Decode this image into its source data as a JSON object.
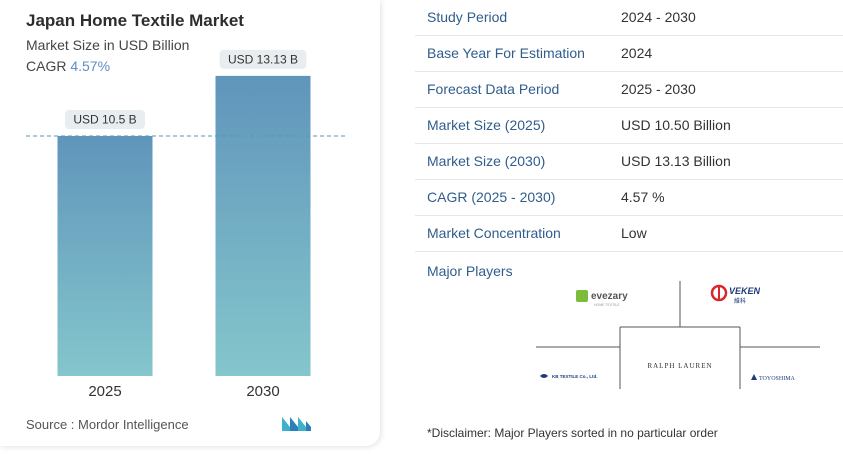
{
  "header": {
    "title": "Japan Home Textile Market",
    "subtitle": "Market Size in USD Billion",
    "cagr_label": "CAGR",
    "cagr_value": "4.57%"
  },
  "chart_data": {
    "type": "bar",
    "categories": [
      "2025",
      "2030"
    ],
    "values": [
      10.5,
      13.13
    ],
    "data_labels": [
      "USD 10.5 B",
      "USD 13.13 B"
    ],
    "title": "Japan Home Textile Market",
    "ylabel": "",
    "xlabel": "",
    "ylim": [
      0,
      14
    ],
    "colors": {
      "bar_top": "#6095bb",
      "bar_bottom": "#84c6cc",
      "label_bg": "#e8eef0",
      "reference_line": "#5a94b3"
    }
  },
  "footer": {
    "source": "Source :  Mordor Intelligence"
  },
  "summary_table": [
    {
      "label": "Study Period",
      "value": "2024 - 2030"
    },
    {
      "label": "Base Year For Estimation",
      "value": "2024"
    },
    {
      "label": "Forecast Data Period",
      "value": "2025 - 2030"
    },
    {
      "label": "Market Size (2025)",
      "value": "USD 10.50 Billion"
    },
    {
      "label": "Market Size (2030)",
      "value": "USD 13.13 Billion"
    },
    {
      "label": "CAGR (2025 - 2030)",
      "value": "4.57 %"
    },
    {
      "label": "Market Concentration",
      "value": "Low"
    }
  ],
  "players": {
    "title": "Major Players",
    "logos": [
      "evezary",
      "VEKEN",
      "RALPH LAUREN",
      "KB TEXTILE Co., Ltd.",
      "TOYOSHIMA"
    ],
    "veken_sub": "維科",
    "evezary_sub": "HOME TEXTILE"
  },
  "disclaimer": "*Disclaimer: Major Players sorted in no particular order",
  "colors": {
    "label_blue": "#2f5d8c",
    "accent": "#5b8fc0"
  }
}
